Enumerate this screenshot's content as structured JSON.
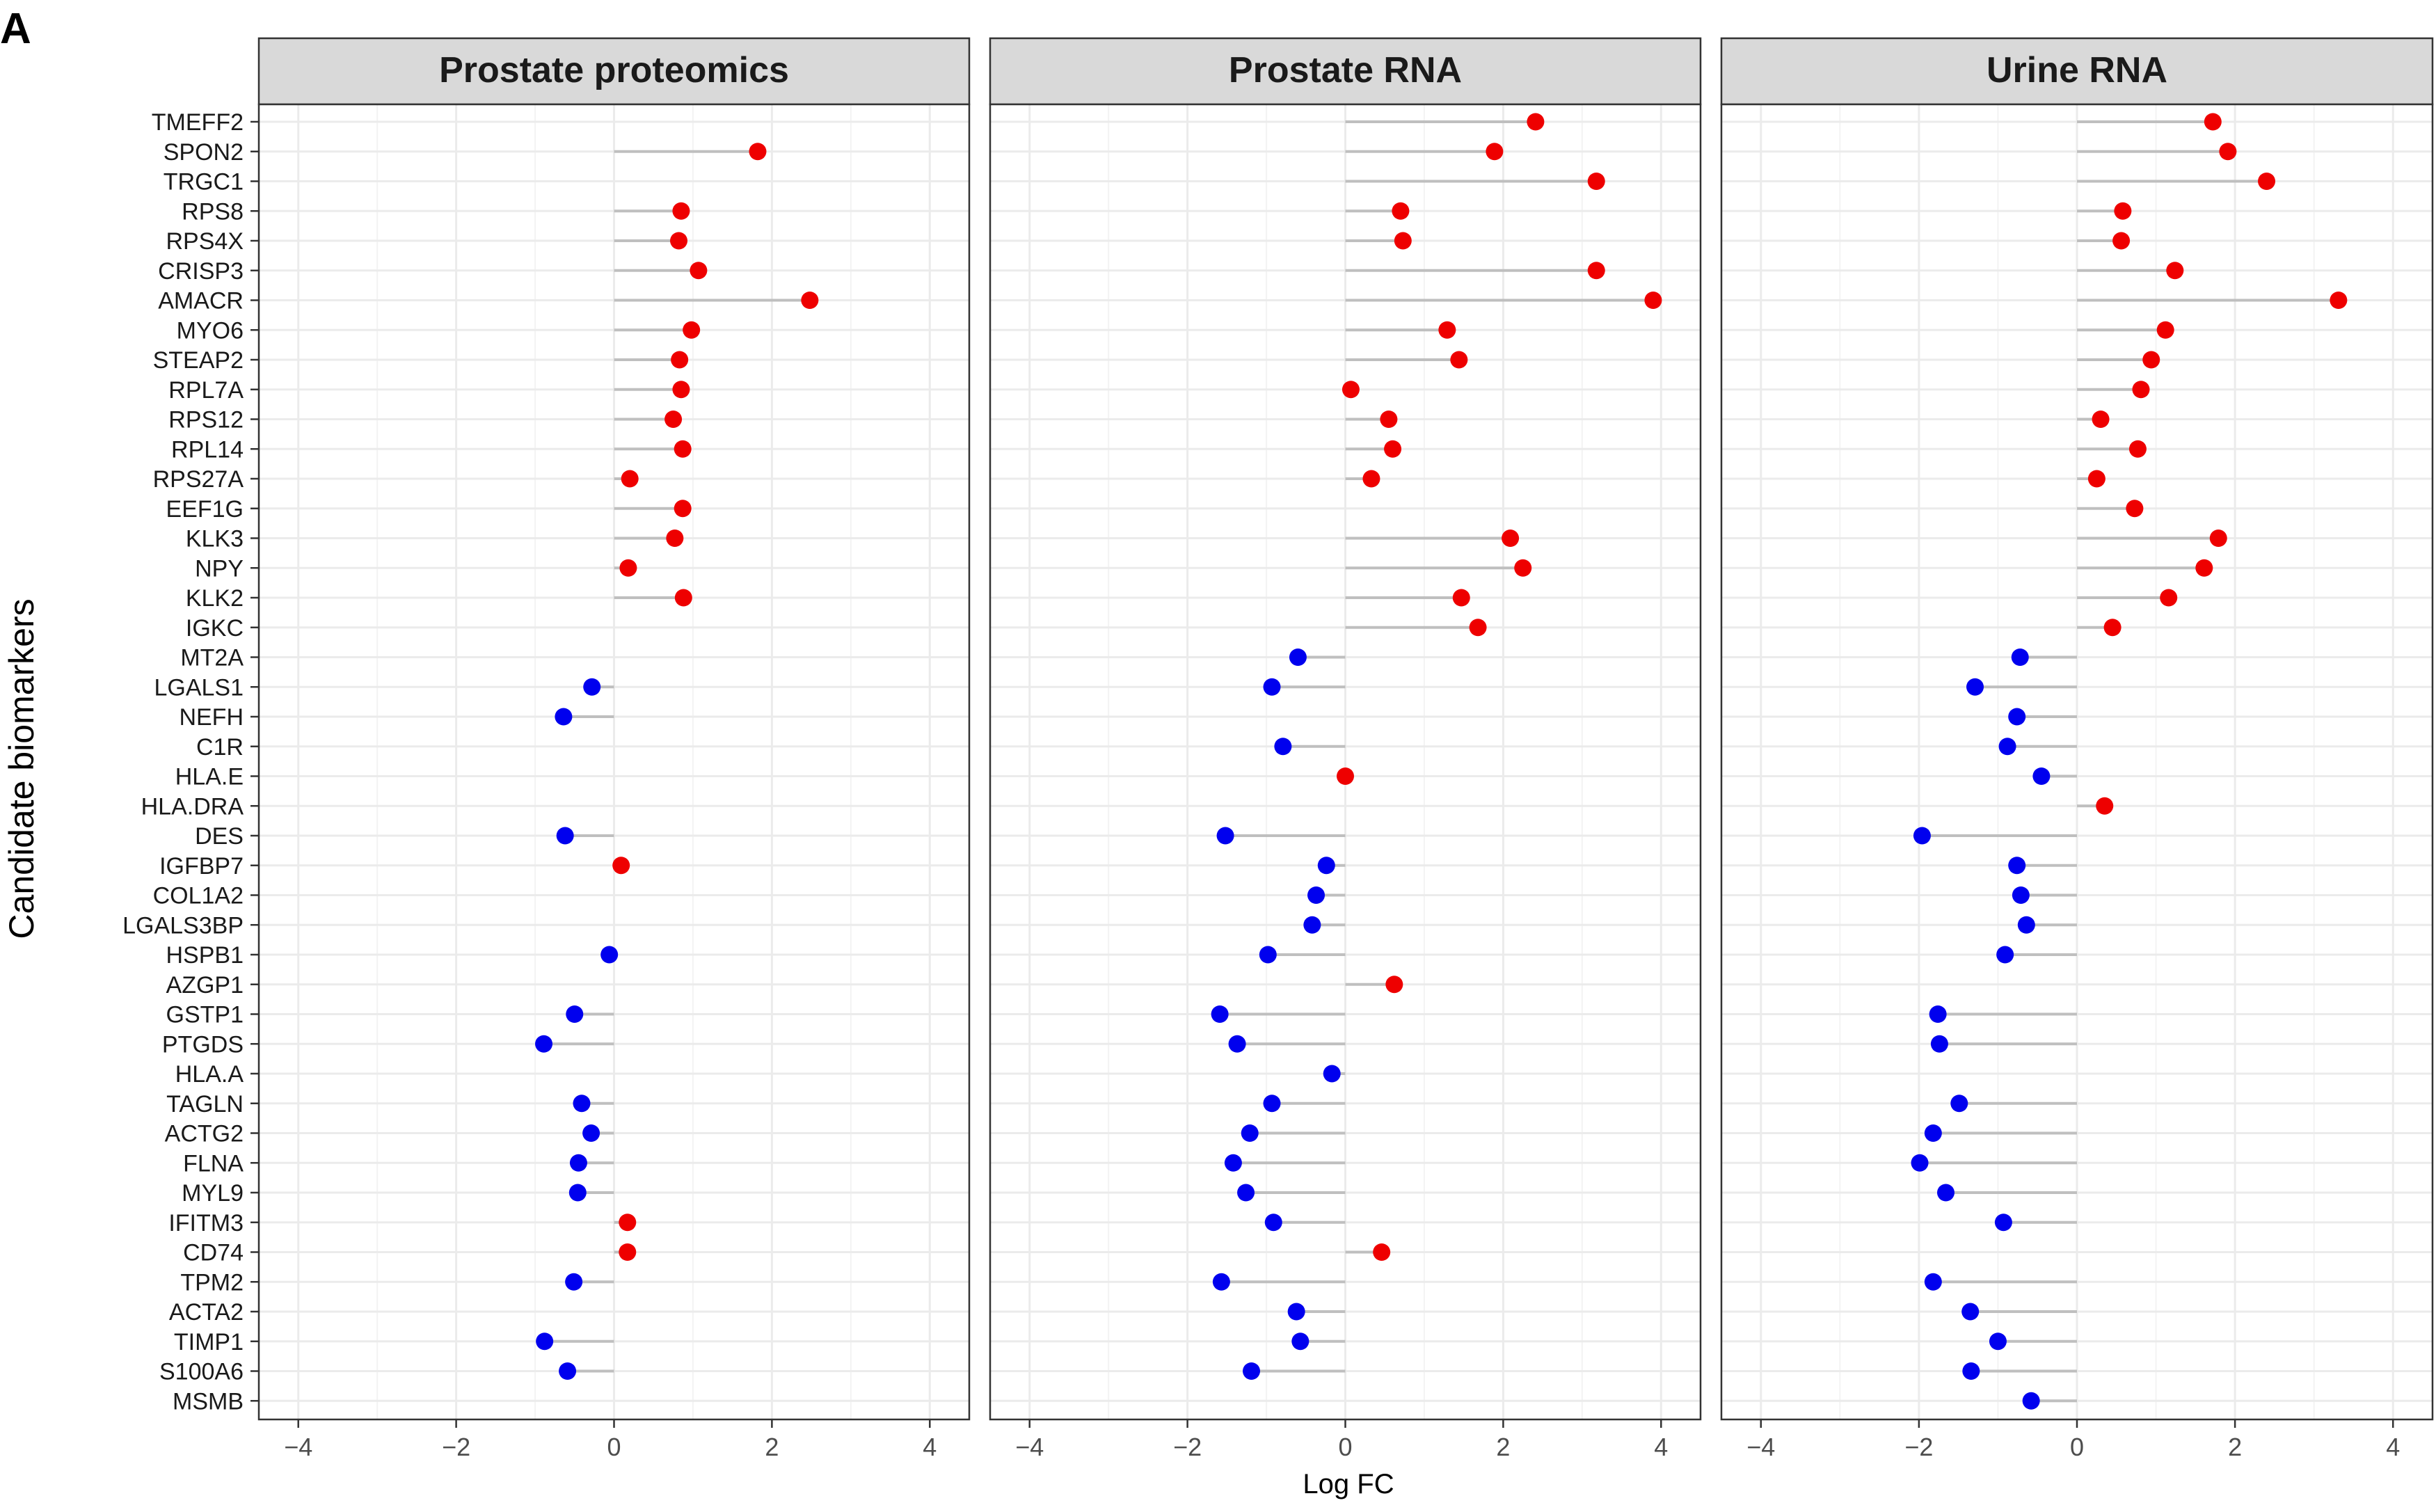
{
  "chart_data": {
    "type": "lollipop",
    "panel_letter": "A",
    "xlabel": "Log FC",
    "ylabel": "Candidate biomarkers",
    "xlim": [
      -4.5,
      4.5
    ],
    "xticks": [
      -4,
      -2,
      0,
      2,
      4
    ],
    "xtick_labels": [
      "−4",
      "−2",
      "0",
      "2",
      "4"
    ],
    "grid": true,
    "colors": {
      "up": "#ee0000",
      "down": "#0000ee",
      "stem": "#bfbfbf",
      "strip": "#d9d9d9",
      "grid": "#ebebeb"
    },
    "categories": [
      "TMEFF2",
      "SPON2",
      "TRGC1",
      "RPS8",
      "RPS4X",
      "CRISP3",
      "AMACR",
      "MYO6",
      "STEAP2",
      "RPL7A",
      "RPS12",
      "RPL14",
      "RPS27A",
      "EEF1G",
      "KLK3",
      "NPY",
      "KLK2",
      "IGKC",
      "MT2A",
      "LGALS1",
      "NEFH",
      "C1R",
      "HLA.E",
      "HLA.DRA",
      "DES",
      "IGFBP7",
      "COL1A2",
      "LGALS3BP",
      "HSPB1",
      "AZGP1",
      "GSTP1",
      "PTGDS",
      "HLA.A",
      "TAGLN",
      "ACTG2",
      "FLNA",
      "MYL9",
      "IFITM3",
      "CD74",
      "TPM2",
      "ACTA2",
      "TIMP1",
      "S100A6",
      "MSMB"
    ],
    "panels": [
      {
        "name": "Prostate proteomics",
        "values": [
          null,
          1.82,
          null,
          0.85,
          0.82,
          1.07,
          2.48,
          0.98,
          0.83,
          0.85,
          0.75,
          0.87,
          0.2,
          0.87,
          0.77,
          0.18,
          0.88,
          null,
          null,
          -0.28,
          -0.64,
          null,
          null,
          null,
          -0.62,
          0.09,
          null,
          null,
          -0.06,
          null,
          -0.5,
          -0.89,
          null,
          -0.41,
          -0.29,
          -0.45,
          -0.46,
          0.17,
          0.17,
          -0.51,
          null,
          -0.88,
          -0.59,
          null
        ]
      },
      {
        "name": "Prostate RNA",
        "values": [
          2.41,
          1.89,
          3.18,
          0.7,
          0.73,
          3.18,
          3.9,
          1.29,
          1.44,
          0.07,
          0.55,
          0.6,
          0.33,
          null,
          2.09,
          2.25,
          1.47,
          1.68,
          -0.6,
          -0.93,
          null,
          -0.79,
          0.0,
          null,
          -1.52,
          -0.24,
          -0.37,
          -0.42,
          -0.98,
          0.62,
          -1.59,
          -1.37,
          -0.17,
          -0.93,
          -1.21,
          -1.42,
          -1.26,
          -0.91,
          0.46,
          -1.57,
          -0.62,
          -0.57,
          -1.19,
          null
        ]
      },
      {
        "name": "Urine RNA",
        "values": [
          1.72,
          1.91,
          2.4,
          0.58,
          0.56,
          1.24,
          3.31,
          1.12,
          0.94,
          0.81,
          0.3,
          0.77,
          0.25,
          0.73,
          1.79,
          1.61,
          1.16,
          0.45,
          -0.72,
          -1.29,
          -0.76,
          -0.88,
          -0.45,
          0.35,
          -1.96,
          -0.76,
          -0.71,
          -0.64,
          -0.91,
          null,
          -1.76,
          -1.74,
          null,
          -1.49,
          -1.82,
          -1.99,
          -1.66,
          -0.93,
          null,
          -1.82,
          -1.35,
          -1.0,
          -1.34,
          -0.58
        ]
      }
    ]
  }
}
